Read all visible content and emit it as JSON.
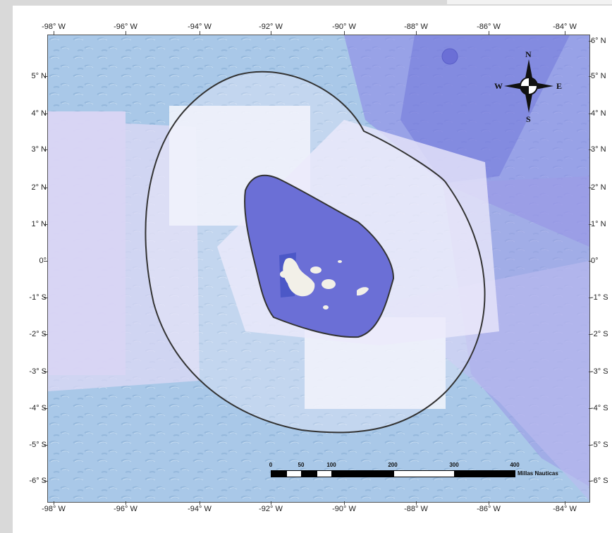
{
  "map": {
    "ocean_color": "#a9c8e8",
    "zones": {
      "outer_color": "#ddd9f5",
      "light_color": "#eef3fb",
      "dark_color": "#6b6fd6",
      "band_color": "#8f8ee6",
      "island_color": "#f2f0e8",
      "boundary_color": "#333333"
    },
    "lon_labels": [
      "-98° W",
      "-96° W",
      "-94° W",
      "-92° W",
      "-90° W",
      "-88° W",
      "-86° W",
      "-84° W"
    ],
    "lat_labels_left": [
      "5° N",
      "4° N",
      "3° N",
      "2° N",
      "1° N",
      "0°",
      "-1° S",
      "-2° S",
      "-3° S",
      "-4° S",
      "-5° S",
      "-6° S"
    ],
    "lat_labels_right": [
      "6° N",
      "5° N",
      "4° N",
      "3° N",
      "2° N",
      "1° N",
      "0°",
      "-1° S",
      "-2° S",
      "-3° S",
      "-4° S",
      "-5° S",
      "-6° S"
    ]
  },
  "compass": {
    "north": "N",
    "south": "S",
    "east": "E",
    "west": "W"
  },
  "scale": {
    "labels": [
      "0",
      "50",
      "100",
      "200",
      "300",
      "400"
    ],
    "units": "Millas Nauticas"
  }
}
